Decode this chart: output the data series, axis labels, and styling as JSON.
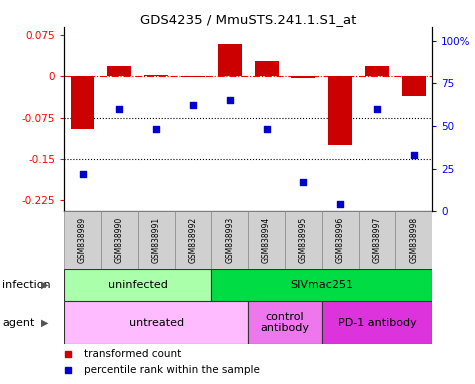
{
  "title": "GDS4235 / MmuSTS.241.1.S1_at",
  "samples": [
    "GSM838989",
    "GSM838990",
    "GSM838991",
    "GSM838992",
    "GSM838993",
    "GSM838994",
    "GSM838995",
    "GSM838996",
    "GSM838997",
    "GSM838998"
  ],
  "bar_values": [
    -0.095,
    0.018,
    0.002,
    -0.002,
    0.058,
    0.028,
    -0.003,
    -0.125,
    0.018,
    -0.035
  ],
  "dot_values": [
    22,
    60,
    48,
    62,
    65,
    48,
    17,
    4,
    60,
    33
  ],
  "bar_color": "#cc0000",
  "dot_color": "#0000cc",
  "ylim_left": [
    -0.245,
    0.09
  ],
  "ylim_right": [
    0,
    108
  ],
  "yticks_left": [
    0.075,
    0,
    -0.075,
    -0.15,
    -0.225
  ],
  "yticks_right": [
    100,
    75,
    50,
    25,
    0
  ],
  "dotted_lines": [
    -0.075,
    -0.15
  ],
  "infection_groups": [
    {
      "label": "uninfected",
      "start": 0,
      "end": 4,
      "color": "#aaffaa"
    },
    {
      "label": "SIVmac251",
      "start": 4,
      "end": 10,
      "color": "#00dd44"
    }
  ],
  "agent_groups": [
    {
      "label": "untreated",
      "start": 0,
      "end": 5,
      "color": "#ffbbff"
    },
    {
      "label": "control\nantibody",
      "start": 5,
      "end": 7,
      "color": "#ee77ee"
    },
    {
      "label": "PD-1 antibody",
      "start": 7,
      "end": 10,
      "color": "#dd33dd"
    }
  ],
  "legend_items": [
    {
      "label": "transformed count",
      "color": "#cc0000"
    },
    {
      "label": "percentile rank within the sample",
      "color": "#0000cc"
    }
  ],
  "infection_label": "infection",
  "agent_label": "agent",
  "sample_bg": "#d0d0d0"
}
